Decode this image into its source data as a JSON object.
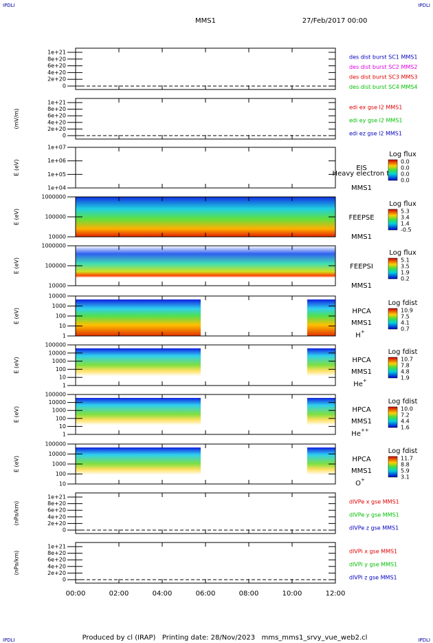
{
  "header": {
    "corners": [
      "IPDLI",
      "IPDLI",
      "IPDLI",
      "IPDLI"
    ],
    "title": "MMS1",
    "date": "27/Feb/2017 00:00"
  },
  "panels": [
    {
      "yticks": [
        "1e+21",
        "8e+20",
        "6e+20",
        "4e+20",
        "2e+20",
        "0"
      ],
      "legend": [
        {
          "text": "des dist burst SC1 MMS1",
          "color": "#0000c0"
        },
        {
          "text": "des dist burst SC2 MMS2",
          "color": "#e000e0"
        },
        {
          "text": "des dist burst SC3 MMS3",
          "color": "#e00000"
        },
        {
          "text": "des dist burst SC4 MMS4",
          "color": "#00c000"
        }
      ]
    },
    {
      "ylabel": "(mV/m)",
      "yticks": [
        "1e+21",
        "8e+20",
        "6e+20",
        "4e+20",
        "2e+20",
        "0"
      ],
      "legend": [
        {
          "text": "edi ex gse l2 MMS1",
          "color": "#e00000"
        },
        {
          "text": "edi ey gse l2 MMS1",
          "color": "#00c000"
        },
        {
          "text": "edi ez gse l2 MMS1",
          "color": "#0000c0"
        }
      ]
    },
    {
      "ylabel": "E (eV)",
      "yticks": [
        "1e+07",
        "1e+06",
        "1e+05",
        "1e+04"
      ],
      "instrument": "EIS",
      "note": "Heavy electron to",
      "spacecraft": "MMS1",
      "colorbar": {
        "title": "Log flux",
        "labels": [
          "0.0",
          "0.0",
          "0.0",
          "0.0"
        ]
      }
    },
    {
      "ylabel": "E (eV)",
      "yticks": [
        "1000000",
        "100000",
        "10000"
      ],
      "instrument": "FEEPSE",
      "spacecraft": "MMS1",
      "colorbar": {
        "title": "Log flux",
        "labels": [
          "5.3",
          "3.4",
          "1.4",
          "-0.5"
        ]
      }
    },
    {
      "ylabel": "E (eV)",
      "yticks": [
        "1000000",
        "100000",
        "10000"
      ],
      "instrument": "FEEPSI",
      "spacecraft": "MMS1",
      "colorbar": {
        "title": "Log flux",
        "labels": [
          "5.1",
          "3.5",
          "1.9",
          "0.2"
        ]
      }
    },
    {
      "ylabel": "E (eV)",
      "yticks": [
        "10000",
        "1000",
        "100",
        "10",
        "1"
      ],
      "instrument": "HPCA",
      "spacecraft": "MMS1",
      "species": "H",
      "charge": "+",
      "colorbar": {
        "title": "Log fdist",
        "labels": [
          "10.9",
          "7.5",
          "4.1",
          "0.7"
        ]
      }
    },
    {
      "ylabel": "E (eV)",
      "yticks": [
        "100000",
        "10000",
        "1000",
        "100",
        "10",
        "1"
      ],
      "instrument": "HPCA",
      "spacecraft": "MMS1",
      "species": "He",
      "charge": "+",
      "colorbar": {
        "title": "Log fdist",
        "labels": [
          "10.7",
          "7.8",
          "4.8",
          "1.9"
        ]
      }
    },
    {
      "ylabel": "E (eV)",
      "yticks": [
        "100000",
        "10000",
        "1000",
        "100",
        "10",
        "1"
      ],
      "instrument": "HPCA",
      "spacecraft": "MMS1",
      "species": "He",
      "charge": "++",
      "colorbar": {
        "title": "Log fdist",
        "labels": [
          "10.0",
          "7.2",
          "4.4",
          "1.6"
        ]
      }
    },
    {
      "ylabel": "E (eV)",
      "yticks": [
        "100000",
        "10000",
        "1000",
        "100",
        "10"
      ],
      "instrument": "HPCA",
      "spacecraft": "MMS1",
      "species": "O",
      "charge": "+",
      "colorbar": {
        "title": "Log fdist",
        "labels": [
          "11.7",
          "8.8",
          "5.9",
          "3.1"
        ]
      }
    },
    {
      "ylabel": "(nPa/km)",
      "yticks": [
        "1e+21",
        "8e+20",
        "6e+20",
        "4e+20",
        "2e+20",
        "0"
      ],
      "legend": [
        {
          "text": "dlVPe x gse MMS1",
          "color": "#e00000"
        },
        {
          "text": "dlVPe y gse MMS1",
          "color": "#00c000"
        },
        {
          "text": "dlVPe z gse MMS1",
          "color": "#0000c0"
        }
      ]
    },
    {
      "ylabel": "(nPa/km)",
      "yticks": [
        "1e+21",
        "8e+20",
        "6e+20",
        "4e+20",
        "2e+20",
        "0"
      ],
      "legend": [
        {
          "text": "dlVPi x gse MMS1",
          "color": "#e00000"
        },
        {
          "text": "dlVPi y gse MMS1",
          "color": "#00c000"
        },
        {
          "text": "dlVPi z gse MMS1",
          "color": "#0000c0"
        }
      ]
    }
  ],
  "xticks": [
    "00:00",
    "02:00",
    "04:00",
    "06:00",
    "08:00",
    "10:00",
    "12:00"
  ],
  "footer": "Produced by cl (IRAP)   Printing date: 28/Nov/2023   mms_mms1_srvy_vue_web2.cl"
}
